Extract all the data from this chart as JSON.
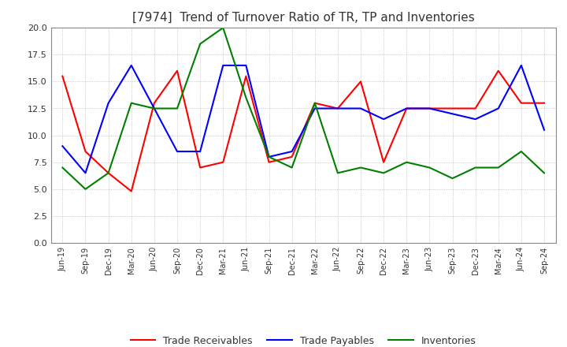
{
  "title": "[7974]  Trend of Turnover Ratio of TR, TP and Inventories",
  "title_fontsize": 11,
  "ylim": [
    0.0,
    20.0
  ],
  "yticks": [
    0.0,
    2.5,
    5.0,
    7.5,
    10.0,
    12.5,
    15.0,
    17.5,
    20.0
  ],
  "ytick_labels": [
    "0.0",
    "2.5",
    "5.0",
    "7.5",
    "10.0",
    "12.5",
    "15.0",
    "17.5",
    "20.0"
  ],
  "x_labels": [
    "Jun-19",
    "Sep-19",
    "Dec-19",
    "Mar-20",
    "Jun-20",
    "Sep-20",
    "Dec-20",
    "Mar-21",
    "Jun-21",
    "Sep-21",
    "Dec-21",
    "Mar-22",
    "Jun-22",
    "Sep-22",
    "Dec-22",
    "Mar-23",
    "Jun-23",
    "Sep-23",
    "Dec-23",
    "Mar-24",
    "Jun-24",
    "Sep-24"
  ],
  "trade_receivables": [
    15.5,
    8.5,
    6.5,
    4.8,
    13.0,
    16.0,
    7.0,
    7.5,
    15.5,
    7.5,
    8.0,
    13.0,
    12.5,
    15.0,
    7.5,
    12.5,
    12.5,
    12.5,
    12.5,
    16.0,
    13.0,
    13.0
  ],
  "trade_payables": [
    9.0,
    6.5,
    13.0,
    16.5,
    12.5,
    8.5,
    8.5,
    16.5,
    16.5,
    8.0,
    8.5,
    12.5,
    12.5,
    12.5,
    11.5,
    12.5,
    12.5,
    12.0,
    11.5,
    12.5,
    16.5,
    10.5
  ],
  "inventories": [
    7.0,
    5.0,
    6.5,
    13.0,
    12.5,
    12.5,
    18.5,
    20.0,
    13.5,
    8.0,
    7.0,
    13.0,
    6.5,
    7.0,
    6.5,
    7.5,
    7.0,
    6.0,
    7.0,
    7.0,
    8.5,
    6.5
  ],
  "color_tr": "#ff0000",
  "color_tp": "#0000ff",
  "color_inv": "#008000",
  "legend_labels": [
    "Trade Receivables",
    "Trade Payables",
    "Inventories"
  ],
  "background_color": "#ffffff",
  "grid_color": "#aaaaaa"
}
